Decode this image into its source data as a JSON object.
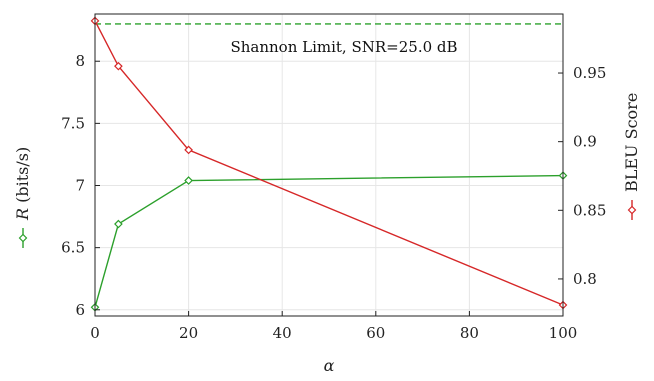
{
  "chart_data": {
    "type": "line",
    "x": [
      0,
      5,
      20,
      100
    ],
    "xlabel": "α",
    "xlim": [
      0,
      100
    ],
    "xticks": [
      0,
      20,
      40,
      60,
      80,
      100
    ],
    "grid": true,
    "left_axis": {
      "label_var": "R",
      "label_unit": " (bits/s)",
      "ylim": [
        5.95,
        8.38
      ],
      "yticks": [
        6,
        6.5,
        7,
        7.5,
        8
      ]
    },
    "right_axis": {
      "label": "BLEU Score",
      "ylim": [
        0.773,
        0.993
      ],
      "yticks": [
        0.8,
        0.85,
        0.9,
        0.95
      ]
    },
    "series": [
      {
        "axis": "left",
        "color": "#2ca02c",
        "values": [
          6.02,
          6.69,
          7.04,
          7.08
        ]
      },
      {
        "axis": "right",
        "color": "#d62728",
        "values": [
          0.988,
          0.955,
          0.894,
          0.781
        ]
      }
    ],
    "reference_line": {
      "axis": "left",
      "value": 8.3,
      "color": "#2ca02c",
      "style": "dashed"
    },
    "annotation": "Shannon Limit, SNR=25.0 dB"
  }
}
